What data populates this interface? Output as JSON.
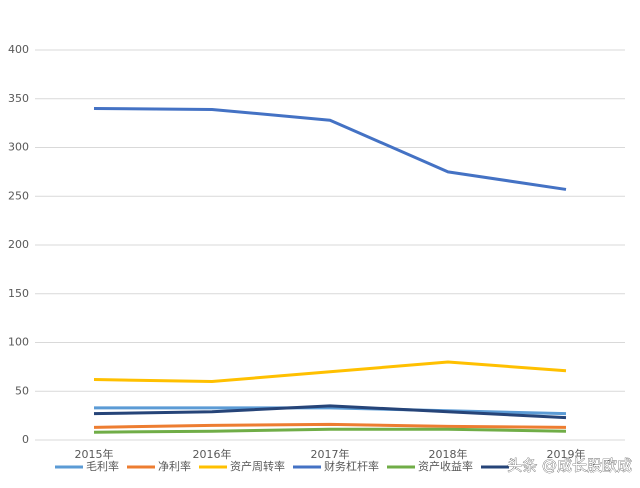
{
  "chart_data": {
    "type": "line",
    "categories": [
      "2015年",
      "2016年",
      "2017年",
      "2018年",
      "2019年"
    ],
    "series": [
      {
        "name": "毛利率",
        "color": "#5b9bd5",
        "values": [
          33,
          33,
          33,
          30,
          27
        ]
      },
      {
        "name": "净利率",
        "color": "#ed7d31",
        "values": [
          13,
          15,
          16,
          14,
          13
        ]
      },
      {
        "name": "资产周转率",
        "color": "#ffc000",
        "values": [
          62,
          60,
          70,
          80,
          71
        ]
      },
      {
        "name": "财务杠杆率",
        "color": "#4472c4",
        "values": [
          340,
          339,
          328,
          275,
          257
        ]
      },
      {
        "name": "资产收益率",
        "color": "#70ad47",
        "values": [
          8,
          9,
          11,
          11,
          9
        ]
      },
      {
        "color": "#264478",
        "values": [
          27,
          29,
          35,
          29,
          23
        ]
      }
    ],
    "ylim": [
      0,
      400
    ],
    "yticks": [
      0,
      50,
      100,
      150,
      200,
      250,
      300,
      350,
      400
    ],
    "grid": true,
    "watermark": "头条 @成长股欧成"
  }
}
